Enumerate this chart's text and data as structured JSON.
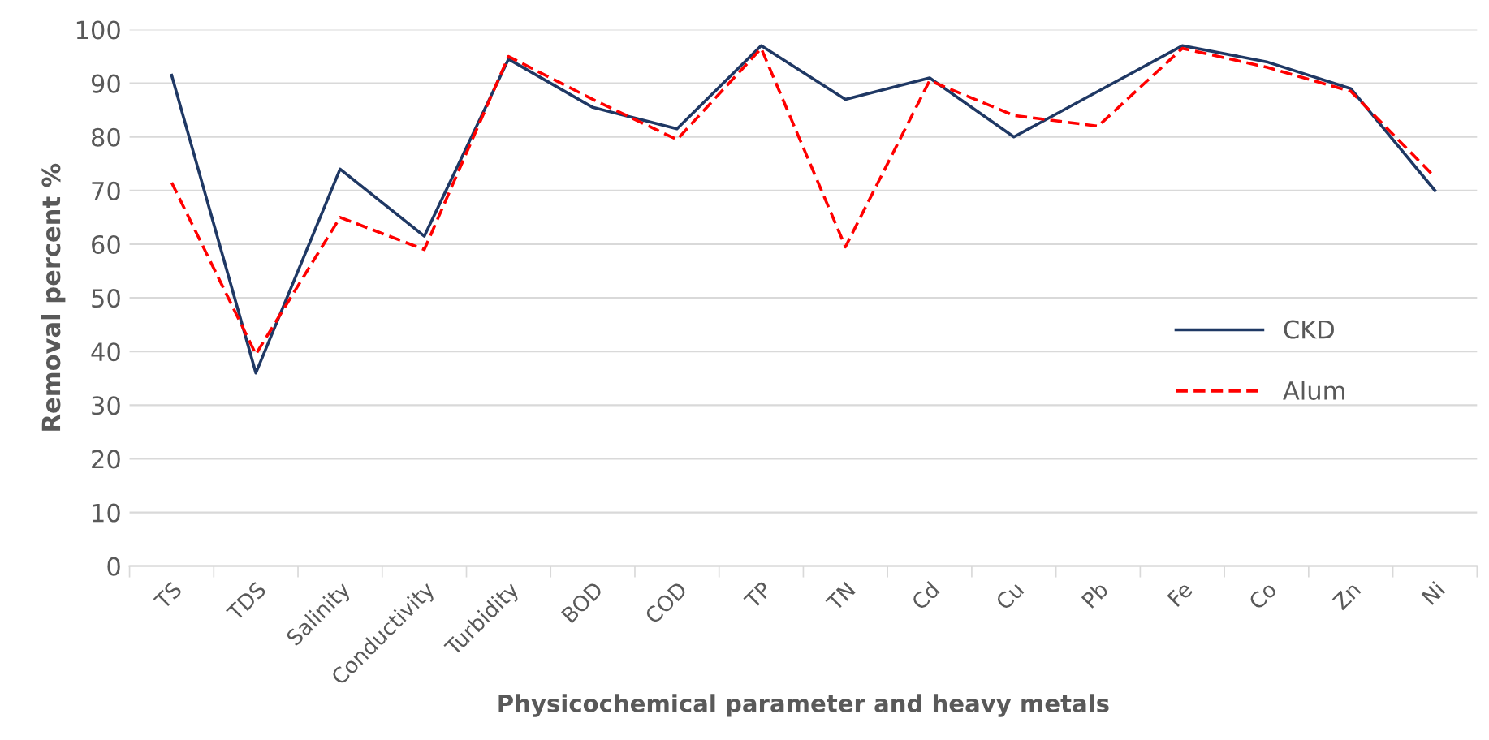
{
  "chart_data": {
    "type": "line",
    "xlabel": "Physicochemical parameter and heavy metals",
    "ylabel": "Removal percent %",
    "categories": [
      "TS",
      "TDS",
      "Salinity",
      "Conductivity",
      "Turbidity",
      "BOD",
      "COD",
      "TP",
      "TN",
      "Cd",
      "Cu",
      "Pb",
      "Fe",
      "Co",
      "Zn",
      "Ni"
    ],
    "series": [
      {
        "name": "CKD",
        "color": "#1f3864",
        "line_style": "solid",
        "values": [
          91.5,
          36,
          74,
          61.5,
          94.5,
          85.5,
          81.5,
          97,
          87,
          91,
          80,
          88.5,
          97,
          94,
          89,
          70
        ]
      },
      {
        "name": "Alum",
        "color": "#ff0000",
        "line_style": "dashed",
        "values": [
          71.5,
          39.5,
          65,
          59,
          95,
          87,
          79.5,
          96.5,
          59.5,
          90.5,
          84,
          82,
          96.5,
          93,
          88.5,
          72.5
        ]
      }
    ],
    "ylim": [
      0,
      100
    ],
    "yticks": [
      0,
      10,
      20,
      30,
      40,
      50,
      60,
      70,
      80,
      90,
      100
    ],
    "grid": "y",
    "legend": "right",
    "marker": "none"
  }
}
